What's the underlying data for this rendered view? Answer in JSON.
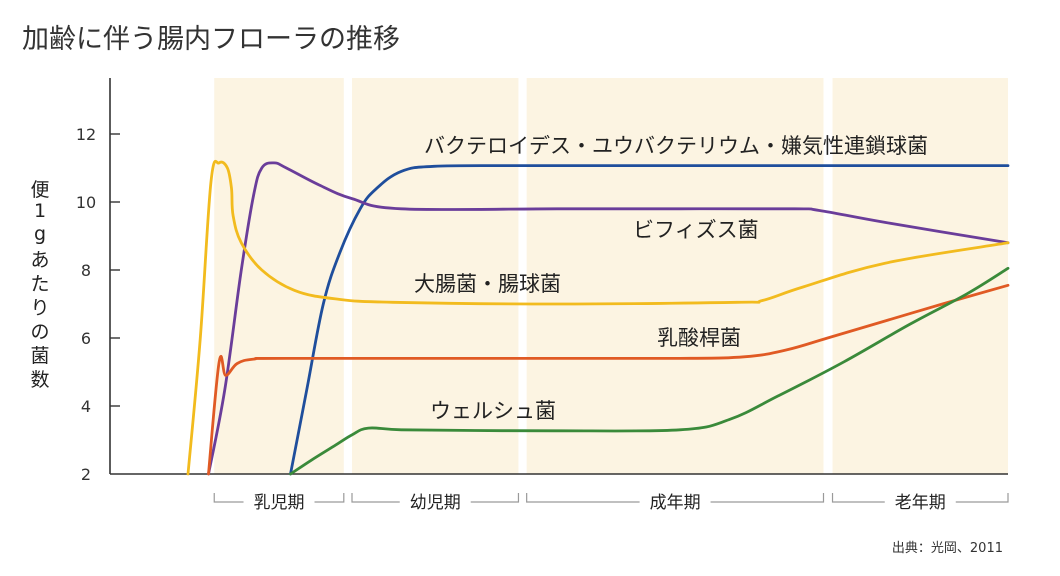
{
  "title": "加齢に伴う腸内フローラの推移",
  "source": "出典：光岡、2011",
  "chart_data": {
    "type": "line",
    "title": "加齢に伴う腸内フローラの推移",
    "ylabel_chars": [
      "便",
      "1",
      "g",
      "あ",
      "た",
      "り",
      "の",
      "菌",
      "数"
    ],
    "ylim": [
      2,
      13.5
    ],
    "yticks": [
      2,
      4,
      6,
      8,
      10,
      12
    ],
    "xlim": [
      0,
      100
    ],
    "periods": [
      {
        "name": "乳児期",
        "start": 3.2,
        "end": 19.0
      },
      {
        "name": "幼児期",
        "start": 20.0,
        "end": 40.3
      },
      {
        "name": "成年期",
        "start": 41.3,
        "end": 77.5
      },
      {
        "name": "老年期",
        "start": 78.6,
        "end": 100
      }
    ],
    "series": [
      {
        "name": "バクテロイデス・ユウバクテリウム・嫌気性連鎖球菌",
        "color": "#1f4e9c",
        "points": [
          [
            12.5,
            2.0
          ],
          [
            14.5,
            4.5
          ],
          [
            16.5,
            7.0
          ],
          [
            18.5,
            8.5
          ],
          [
            21,
            9.8
          ],
          [
            23,
            10.4
          ],
          [
            26,
            10.9
          ],
          [
            30,
            11.05
          ],
          [
            40,
            11.07
          ],
          [
            60,
            11.07
          ],
          [
            80,
            11.07
          ],
          [
            100,
            11.07
          ]
        ]
      },
      {
        "name": "ビフィズス菌",
        "color": "#6a3d9a",
        "points": [
          [
            2.5,
            2.0
          ],
          [
            4.5,
            4.5
          ],
          [
            6.5,
            8.0
          ],
          [
            8.0,
            10.2
          ],
          [
            9.0,
            11.0
          ],
          [
            10.5,
            11.15
          ],
          [
            12,
            11.0
          ],
          [
            16,
            10.5
          ],
          [
            20,
            10.1
          ],
          [
            26,
            9.8
          ],
          [
            45,
            9.8
          ],
          [
            60,
            9.8
          ],
          [
            74,
            9.8
          ],
          [
            77,
            9.75
          ],
          [
            85,
            9.4
          ],
          [
            100,
            8.8
          ]
        ]
      },
      {
        "name": "大腸菌・腸球菌",
        "color": "#f2bb1e",
        "points": [
          [
            0,
            2.0
          ],
          [
            1.5,
            6.0
          ],
          [
            2.8,
            10.6
          ],
          [
            3.8,
            11.15
          ],
          [
            4.8,
            11.0
          ],
          [
            5.3,
            10.4
          ],
          [
            5.5,
            9.6
          ],
          [
            6.5,
            8.8
          ],
          [
            9,
            8.0
          ],
          [
            13,
            7.4
          ],
          [
            18,
            7.15
          ],
          [
            25,
            7.05
          ],
          [
            45,
            7.0
          ],
          [
            67,
            7.05
          ],
          [
            70,
            7.1
          ],
          [
            75,
            7.5
          ],
          [
            85,
            8.2
          ],
          [
            100,
            8.8
          ]
        ]
      },
      {
        "name": "乳酸桿菌",
        "color": "#e05a24",
        "points": [
          [
            2.5,
            2.0
          ],
          [
            3.8,
            5.3
          ],
          [
            4.6,
            4.9
          ],
          [
            6,
            5.25
          ],
          [
            8,
            5.38
          ],
          [
            12,
            5.4
          ],
          [
            40,
            5.4
          ],
          [
            60,
            5.4
          ],
          [
            68,
            5.45
          ],
          [
            73,
            5.65
          ],
          [
            78,
            6.0
          ],
          [
            85,
            6.5
          ],
          [
            92,
            7.0
          ],
          [
            100,
            7.55
          ]
        ]
      },
      {
        "name": "ウェルシュ菌",
        "color": "#3a8a3a",
        "points": [
          [
            12.5,
            2.0
          ],
          [
            15,
            2.4
          ],
          [
            18,
            2.85
          ],
          [
            20,
            3.15
          ],
          [
            22,
            3.35
          ],
          [
            26,
            3.3
          ],
          [
            35,
            3.28
          ],
          [
            45,
            3.27
          ],
          [
            60,
            3.3
          ],
          [
            66,
            3.6
          ],
          [
            72,
            4.3
          ],
          [
            80,
            5.3
          ],
          [
            88,
            6.4
          ],
          [
            95,
            7.3
          ],
          [
            100,
            8.05
          ]
        ]
      }
    ],
    "labels": [
      {
        "text": "バクテロイデス・ユウバクテリウム・嫌気性連鎖球菌",
        "series": 0
      },
      {
        "text": "ビフィズス菌",
        "series": 1
      },
      {
        "text": "大腸菌・腸球菌",
        "series": 2
      },
      {
        "text": "乳酸桿菌",
        "series": 3
      },
      {
        "text": "ウェルシュ菌",
        "series": 4
      }
    ],
    "colors": {
      "band": "#fcf4e2",
      "axis": "#333333"
    }
  }
}
